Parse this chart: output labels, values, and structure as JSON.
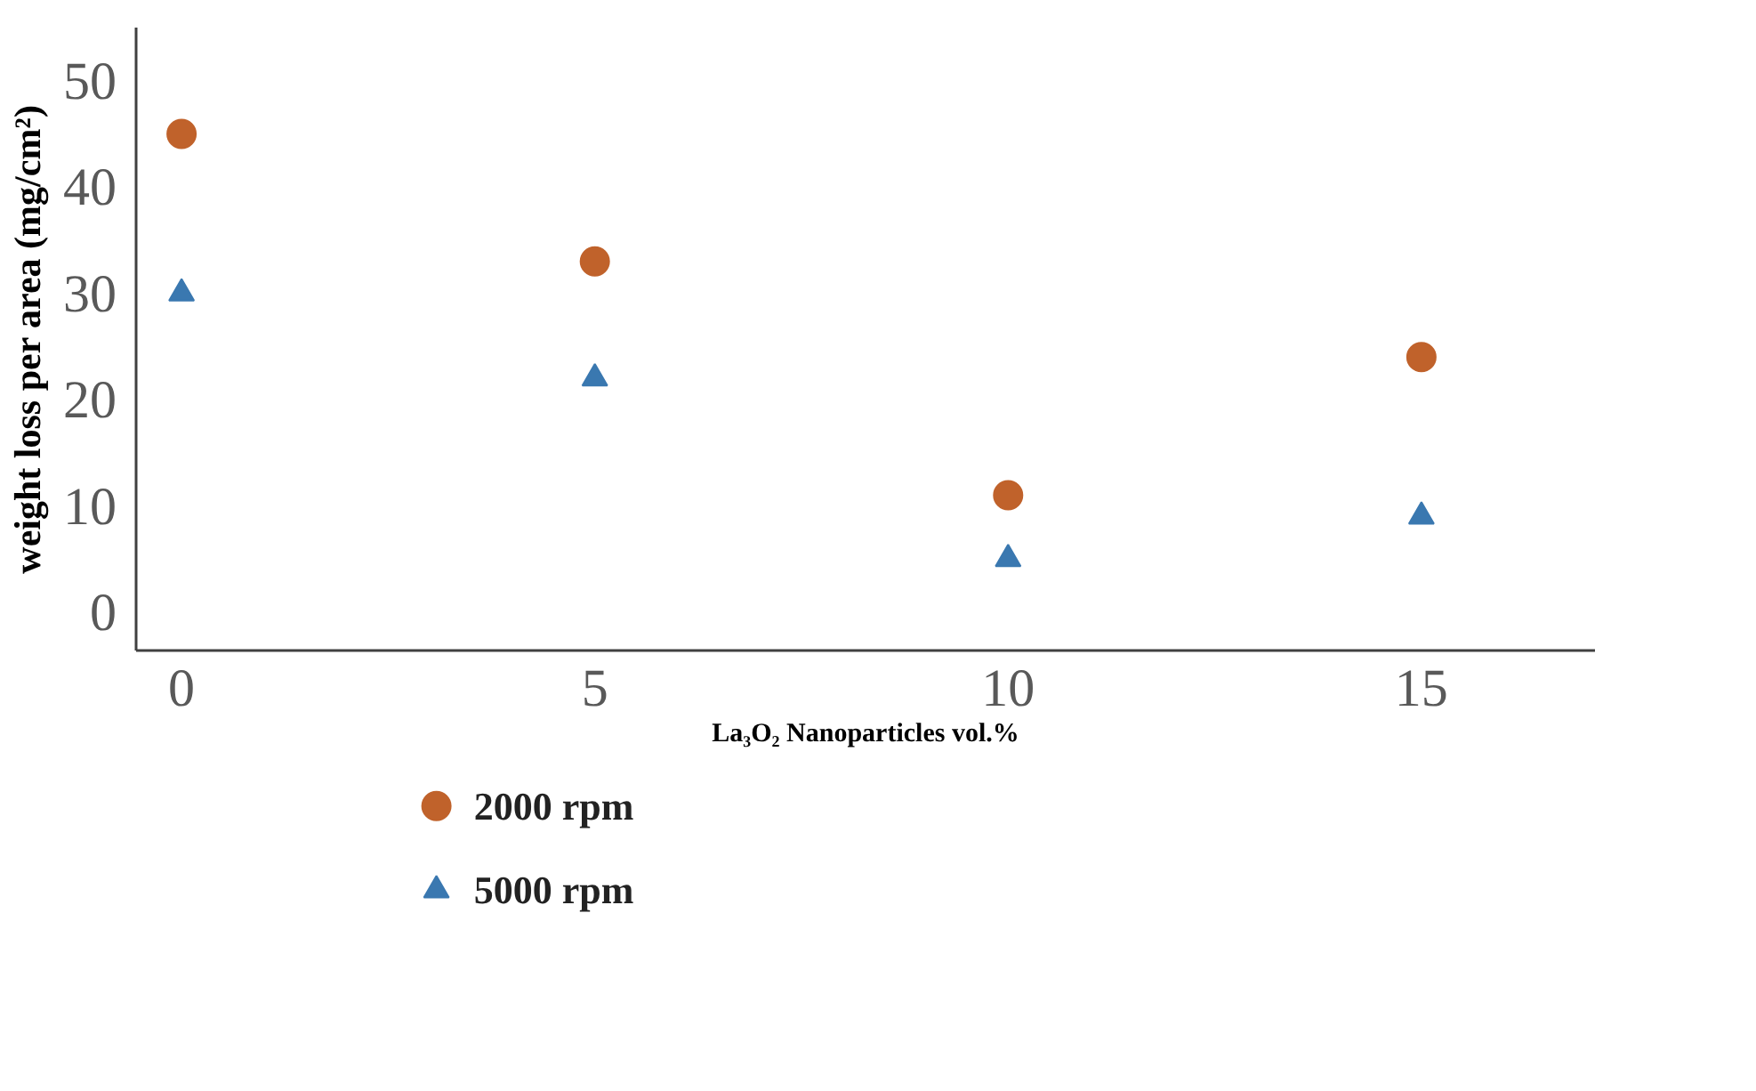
{
  "chart_data": {
    "type": "scatter",
    "xlabel": "La₃O₂ Nanoparticles vol.%",
    "ylabel": "weight loss per area (mg/cm²)",
    "x": [
      0,
      5,
      10,
      15
    ],
    "series": [
      {
        "name": "2000 rpm",
        "color": "#c0622b",
        "marker": "circle",
        "values": [
          45,
          33,
          11,
          24
        ]
      },
      {
        "name": "5000 rpm",
        "color": "#3a78b0",
        "marker": "triangle",
        "values": [
          30,
          22,
          5,
          9
        ]
      }
    ],
    "xlim": [
      -0.55,
      17.1
    ],
    "ylim": [
      -3.6,
      55
    ],
    "xticks": [
      0,
      5,
      10,
      15
    ],
    "yticks": [
      0,
      10,
      20,
      30,
      40,
      50
    ],
    "grid": false,
    "legend": "bottom"
  }
}
